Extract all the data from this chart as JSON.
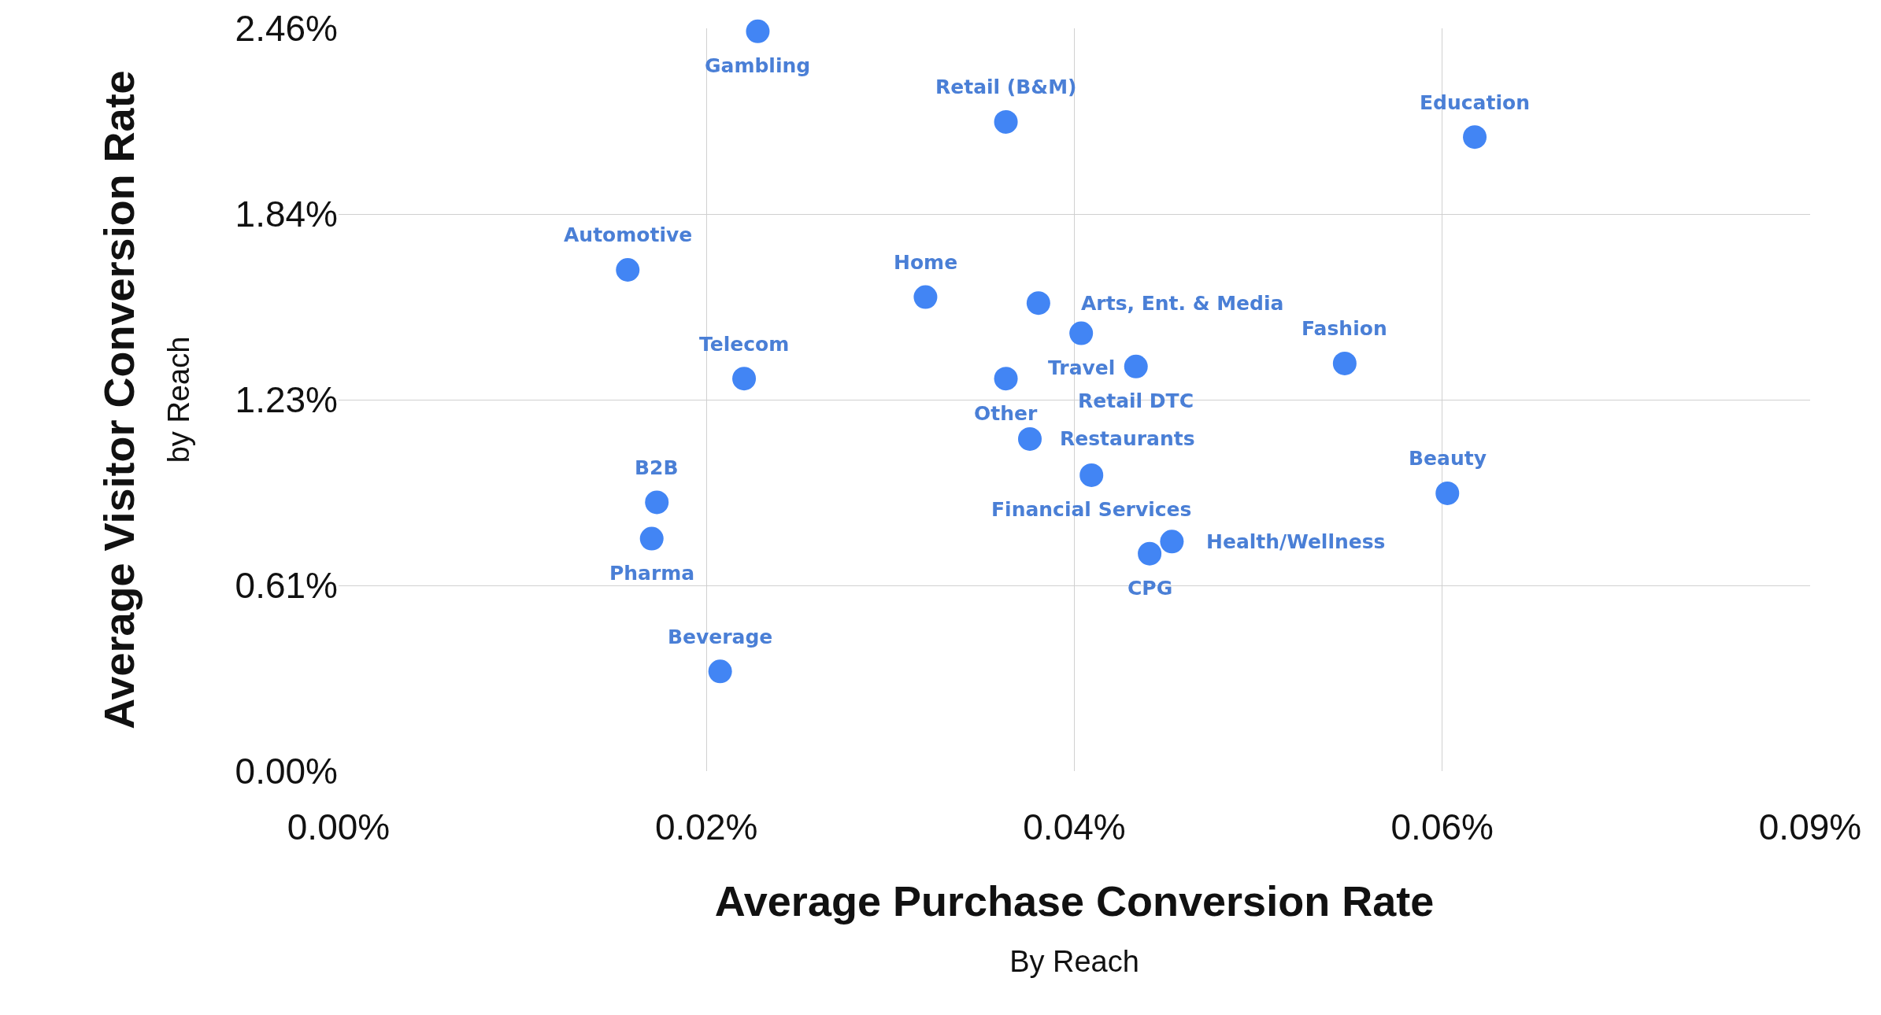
{
  "chart_data": {
    "type": "scatter",
    "xlabel": "Average Purchase Conversion Rate\nBy Reach",
    "ylabel": "Average Visitor Conversion Rate\nby Reach",
    "x": [
      0.0245,
      0.039,
      0.0664,
      0.0169,
      0.0343,
      0.0409,
      0.0434,
      0.0466,
      0.0588,
      0.0237,
      0.039,
      0.0404,
      0.044,
      0.0648,
      0.0186,
      0.0183,
      0.0487,
      0.0474,
      0.0223
    ],
    "series": [
      {
        "color": "#4285f4",
        "values": [
          2.45,
          2.15,
          2.1,
          1.66,
          1.57,
          1.55,
          1.45,
          1.34,
          1.35,
          1.3,
          1.3,
          1.1,
          0.98,
          0.92,
          0.89,
          0.77,
          0.76,
          0.72,
          0.33
        ]
      }
    ],
    "annotations": [
      {
        "text": "Gambling",
        "x": 0.0245,
        "y": 2.45
      },
      {
        "text": "Retail (B&M)",
        "x": 0.039,
        "y": 2.15
      },
      {
        "text": "Education",
        "x": 0.0664,
        "y": 2.1
      },
      {
        "text": "Automotive",
        "x": 0.0169,
        "y": 1.66
      },
      {
        "text": "Home",
        "x": 0.0343,
        "y": 1.57
      },
      {
        "text": "Arts, Ent. & Media",
        "x": 0.0409,
        "y": 1.55
      },
      {
        "text": "Travel",
        "x": 0.0434,
        "y": 1.45
      },
      {
        "text": "Retail DTC",
        "x": 0.0466,
        "y": 1.34
      },
      {
        "text": "Fashion",
        "x": 0.0588,
        "y": 1.35
      },
      {
        "text": "Telecom",
        "x": 0.0237,
        "y": 1.3
      },
      {
        "text": "Other",
        "x": 0.039,
        "y": 1.3
      },
      {
        "text": "Restaurants",
        "x": 0.0404,
        "y": 1.1
      },
      {
        "text": "Financial Services",
        "x": 0.044,
        "y": 0.98
      },
      {
        "text": "Beauty",
        "x": 0.0648,
        "y": 0.92
      },
      {
        "text": "B2B",
        "x": 0.0186,
        "y": 0.89
      },
      {
        "text": "Pharma",
        "x": 0.0183,
        "y": 0.77
      },
      {
        "text": "Health/Wellness",
        "x": 0.0487,
        "y": 0.76
      },
      {
        "text": "CPG",
        "x": 0.0474,
        "y": 0.72
      },
      {
        "text": "Beverage",
        "x": 0.0223,
        "y": 0.33
      }
    ],
    "xlim": [
      0,
      0.086
    ],
    "xticks": [
      {
        "value": 0,
        "label": "0.00%"
      },
      {
        "value": 0.0215,
        "label": "0.02%"
      },
      {
        "value": 0.043,
        "label": "0.04%"
      },
      {
        "value": 0.0645,
        "label": "0.06%"
      },
      {
        "value": 0.086,
        "label": "0.09%"
      }
    ],
    "ylim": [
      0,
      2.46
    ],
    "yticks": [
      {
        "value": 0,
        "label": "0.00%"
      },
      {
        "value": 0.615,
        "label": "0.61%"
      },
      {
        "value": 1.23,
        "label": "1.23%"
      },
      {
        "value": 1.845,
        "label": "1.84%"
      },
      {
        "value": 2.46,
        "label": "2.46%"
      }
    ],
    "grid": true,
    "marker": "circle",
    "legend": false
  }
}
